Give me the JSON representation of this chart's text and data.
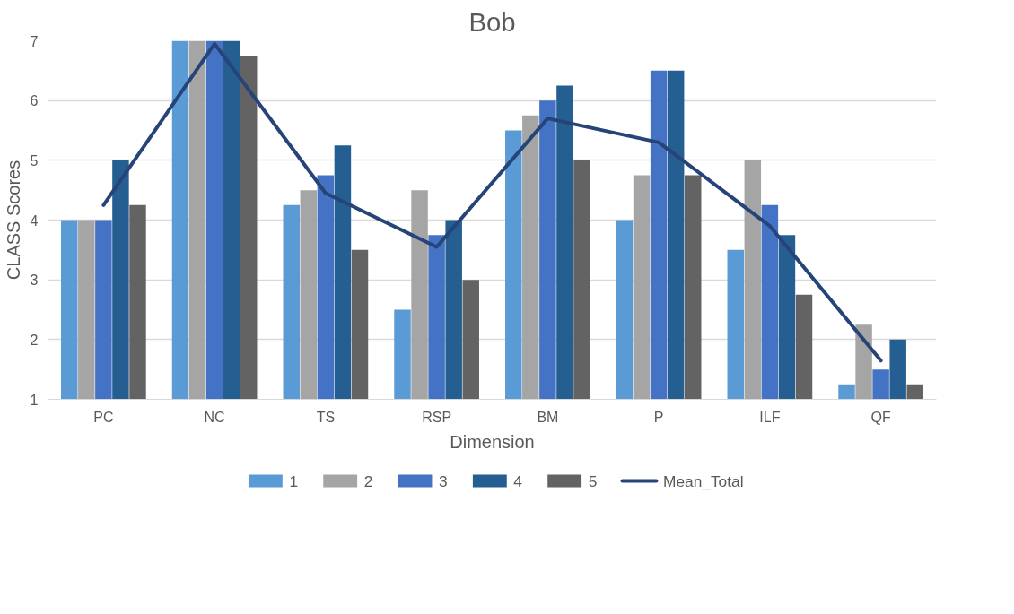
{
  "chart_data": {
    "type": "bar",
    "title": "Bob",
    "xlabel": "Dimension",
    "ylabel": "CLASS Scores",
    "categories": [
      "PC",
      "NC",
      "TS",
      "RSP",
      "BM",
      "P",
      "ILF",
      "QF"
    ],
    "series": [
      {
        "name": "1",
        "color": "#5b9bd5",
        "values": [
          4,
          7,
          4.25,
          2.5,
          5.5,
          4,
          3.5,
          1.25
        ]
      },
      {
        "name": "2",
        "color": "#a5a5a5",
        "values": [
          4,
          7,
          4.5,
          4.5,
          5.75,
          4.75,
          5,
          2.25
        ]
      },
      {
        "name": "3",
        "color": "#4472c4",
        "values": [
          4,
          7,
          4.75,
          3.75,
          6,
          6.5,
          4.25,
          1.5
        ]
      },
      {
        "name": "4",
        "color": "#255e91",
        "values": [
          5,
          7,
          5.25,
          4,
          6.25,
          6.5,
          3.75,
          2
        ]
      },
      {
        "name": "5",
        "color": "#636363",
        "values": [
          4.25,
          6.75,
          3.5,
          3,
          5,
          4.75,
          2.75,
          1.25
        ]
      },
      {
        "name": "Mean_Total",
        "type": "line",
        "color": "#264478",
        "values": [
          4.25,
          6.95,
          4.45,
          3.55,
          5.7,
          5.3,
          3.9,
          1.65
        ]
      }
    ],
    "ylim": [
      1,
      7
    ],
    "yticks": [
      1,
      2,
      3,
      4,
      5,
      6,
      7
    ],
    "grid": "y",
    "legend": "bottom"
  }
}
